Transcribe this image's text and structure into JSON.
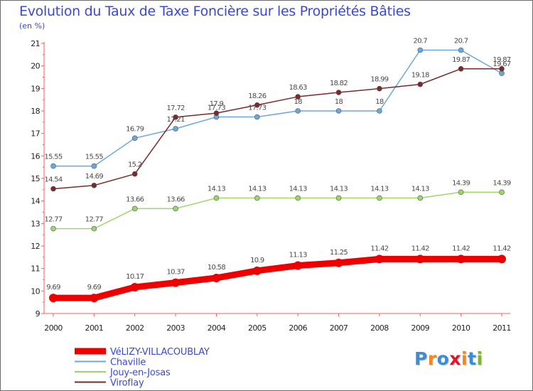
{
  "header": {
    "title": "Evolution du Taux de Taxe Foncière sur les Propriétés Bâties",
    "unit": "(en %)"
  },
  "logo": {
    "text": "Proxiti",
    "letter_colors": [
      "#3a8ed8",
      "#f08a1c",
      "#3a8ed8",
      "#e0162b",
      "#f08a1c",
      "#3a8ed8",
      "#7cb82f"
    ]
  },
  "chart_data": {
    "type": "line",
    "title": "Evolution du Taux de Taxe Foncière sur les Propriétés Bâties",
    "ylabel": "(en %)",
    "xlabel": "",
    "x": [
      2000,
      2001,
      2002,
      2003,
      2004,
      2005,
      2006,
      2007,
      2008,
      2009,
      2010,
      2011
    ],
    "ylim": [
      9,
      21
    ],
    "yticks": [
      9,
      10,
      11,
      12,
      13,
      14,
      15,
      16,
      17,
      18,
      19,
      20,
      21
    ],
    "grid": false,
    "legend_position": "bottom-left",
    "series": [
      {
        "name": "VéLIZY-VILLACOUBLAY",
        "color": "#ee0000",
        "values": [
          9.69,
          9.69,
          10.17,
          10.37,
          10.58,
          10.9,
          11.13,
          11.25,
          11.42,
          11.42,
          11.42,
          11.42
        ],
        "labels": [
          "9.69",
          "9.69",
          "10.17",
          "10.37",
          "10.58",
          "10.9",
          "11.13",
          "11.25",
          "11.42",
          "11.42",
          "11.42",
          "11.42"
        ]
      },
      {
        "name": "Chaville",
        "color": "#6aa7dd",
        "values": [
          15.55,
          15.55,
          16.79,
          17.21,
          17.73,
          17.73,
          18,
          18,
          18,
          20.7,
          20.7,
          19.67
        ],
        "labels": [
          "15.55",
          "15.55",
          "16.79",
          "17.21",
          "17.73",
          "17.73",
          "18",
          "18",
          "18",
          "20.7",
          "20.7",
          "19.67"
        ]
      },
      {
        "name": "Jouy-en-Josas",
        "color": "#9cd66a",
        "values": [
          12.77,
          12.77,
          13.66,
          13.66,
          14.13,
          14.13,
          14.13,
          14.13,
          14.13,
          14.13,
          14.39,
          14.39
        ],
        "labels": [
          "12.77",
          "12.77",
          "13.66",
          "13.66",
          "14.13",
          "14.13",
          "14.13",
          "14.13",
          "14.13",
          "14.13",
          "14.39",
          "14.39"
        ]
      },
      {
        "name": "Viroflay",
        "color": "#7a2a2a",
        "values": [
          14.54,
          14.69,
          15.2,
          17.72,
          17.9,
          18.26,
          18.63,
          18.82,
          18.99,
          19.18,
          19.87,
          19.87
        ],
        "labels": [
          "14.54",
          "14.69",
          "15.2",
          "17.72",
          "17.9",
          "18.26",
          "18.63",
          "18.82",
          "18.99",
          "19.18",
          "19.87",
          "19.87"
        ]
      }
    ]
  }
}
